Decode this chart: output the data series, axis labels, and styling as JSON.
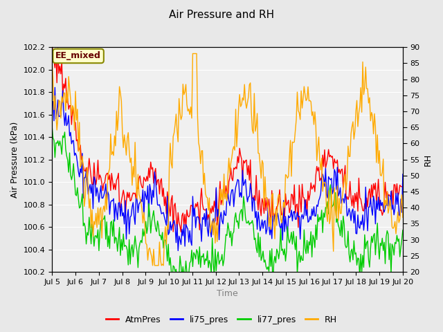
{
  "title": "Air Pressure and RH",
  "xlabel": "Time",
  "ylabel_left": "Air Pressure (kPa)",
  "ylabel_right": "RH",
  "ylim_left": [
    100.2,
    102.2
  ],
  "ylim_right": [
    20,
    90
  ],
  "yticks_left": [
    100.2,
    100.4,
    100.6,
    100.8,
    101.0,
    101.2,
    101.4,
    101.6,
    101.8,
    102.0,
    102.2
  ],
  "yticks_right": [
    20,
    25,
    30,
    35,
    40,
    45,
    50,
    55,
    60,
    65,
    70,
    75,
    80,
    85,
    90
  ],
  "xtick_labels": [
    "Jul 5",
    "Jul 6",
    "Jul 7",
    "Jul 8",
    "Jul 9",
    "Jul 10",
    "Jul 11",
    "Jul 12",
    "Jul 13",
    "Jul 14",
    "Jul 15",
    "Jul 16",
    "Jul 17",
    "Jul 18",
    "Jul 19",
    "Jul 20"
  ],
  "background_color": "#e8e8e8",
  "plot_bg_color": "#f0f0f0",
  "tag_text": "EE_mixed",
  "tag_bg": "#ffffcc",
  "tag_border": "#888800",
  "tag_text_color": "#660000",
  "colors": {
    "AtmPres": "#ff0000",
    "li75_pres": "#0000ff",
    "li77_pres": "#00cc00",
    "RH": "#ffaa00"
  },
  "legend_labels": [
    "AtmPres",
    "li75_pres",
    "li77_pres",
    "RH"
  ],
  "n_points": 360
}
